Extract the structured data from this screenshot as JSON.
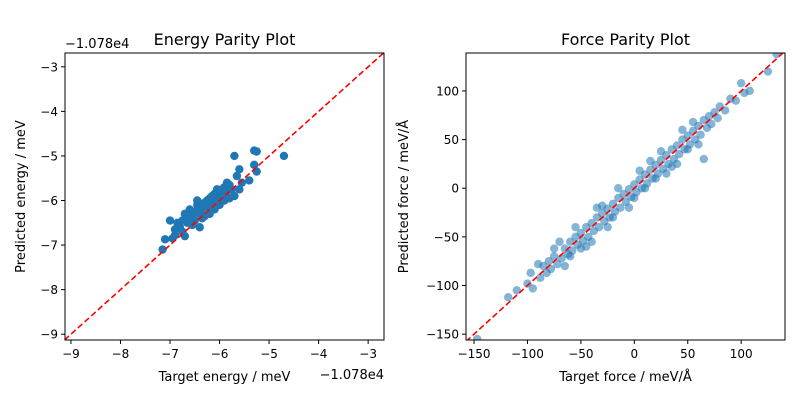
{
  "chart_data": [
    {
      "type": "scatter",
      "title": "Energy Parity Plot",
      "xlabel": "Target energy / meV",
      "ylabel": "Predicted energy / meV",
      "x_offset_label": "−1.078e4",
      "y_offset_label": "−1.078e4",
      "offset": -10780,
      "xlim": [
        -9.12,
        -2.68
      ],
      "ylim": [
        -9.13,
        -2.69
      ],
      "xticks": [
        -9,
        -8,
        -7,
        -6,
        -5,
        -4,
        -3
      ],
      "yticks": [
        -9,
        -8,
        -7,
        -6,
        -5,
        -4,
        -3
      ],
      "xtick_labels": [
        "−9",
        "−8",
        "−7",
        "−6",
        "−5",
        "−4",
        "−3"
      ],
      "ytick_labels": [
        "−9",
        "−8",
        "−7",
        "−6",
        "−5",
        "−4",
        "−3"
      ],
      "point_color": "#1f77b4",
      "point_alpha": 1.0,
      "reference_line": {
        "style": "dashed",
        "color": "#ff0000"
      },
      "grid": false,
      "points": [
        [
          -7.15,
          -7.1
        ],
        [
          -7.1,
          -6.87
        ],
        [
          -6.95,
          -6.85
        ],
        [
          -6.9,
          -6.78
        ],
        [
          -7.0,
          -6.45
        ],
        [
          -6.85,
          -6.5
        ],
        [
          -6.8,
          -6.6
        ],
        [
          -6.75,
          -6.45
        ],
        [
          -6.7,
          -6.8
        ],
        [
          -6.7,
          -6.3
        ],
        [
          -6.65,
          -6.5
        ],
        [
          -6.6,
          -6.4
        ],
        [
          -6.6,
          -6.2
        ],
        [
          -6.55,
          -6.35
        ],
        [
          -6.5,
          -6.25
        ],
        [
          -6.5,
          -6.45
        ],
        [
          -6.45,
          -6.1
        ],
        [
          -6.4,
          -6.6
        ],
        [
          -6.4,
          -6.3
        ],
        [
          -6.35,
          -6.2
        ],
        [
          -6.3,
          -6.05
        ],
        [
          -6.3,
          -6.35
        ],
        [
          -6.25,
          -6.15
        ],
        [
          -6.2,
          -5.95
        ],
        [
          -6.2,
          -6.3
        ],
        [
          -6.15,
          -6.1
        ],
        [
          -6.1,
          -5.85
        ],
        [
          -6.1,
          -6.2
        ],
        [
          -6.05,
          -6.0
        ],
        [
          -6.0,
          -5.8
        ],
        [
          -6.0,
          -6.1
        ],
        [
          -5.95,
          -5.9
        ],
        [
          -5.9,
          -5.7
        ],
        [
          -5.9,
          -6.0
        ],
        [
          -5.85,
          -5.8
        ],
        [
          -5.8,
          -5.65
        ],
        [
          -5.8,
          -5.95
        ],
        [
          -5.75,
          -5.75
        ],
        [
          -5.7,
          -5.9
        ],
        [
          -5.7,
          -5.0
        ],
        [
          -5.65,
          -5.45
        ],
        [
          -5.6,
          -5.75
        ],
        [
          -5.6,
          -5.3
        ],
        [
          -5.55,
          -5.6
        ],
        [
          -5.4,
          -5.55
        ],
        [
          -5.3,
          -5.2
        ],
        [
          -5.3,
          -4.88
        ],
        [
          -5.25,
          -4.9
        ],
        [
          -5.25,
          -5.35
        ],
        [
          -4.7,
          -5.0
        ],
        [
          -6.55,
          -6.55
        ],
        [
          -6.35,
          -6.4
        ],
        [
          -6.15,
          -5.9
        ],
        [
          -5.95,
          -5.75
        ],
        [
          -6.75,
          -6.7
        ],
        [
          -6.9,
          -6.65
        ],
        [
          -6.45,
          -6.0
        ],
        [
          -6.25,
          -6.0
        ],
        [
          -6.05,
          -5.75
        ],
        [
          -5.85,
          -5.6
        ]
      ]
    },
    {
      "type": "scatter",
      "title": "Force Parity Plot",
      "xlabel": "Target force / meV/Å",
      "ylabel": "Predicted force / meV/Å",
      "xlim": [
        -157.5,
        141
      ],
      "ylim": [
        -156,
        139
      ],
      "xticks": [
        -150,
        -100,
        -50,
        0,
        50,
        100
      ],
      "yticks": [
        -150,
        -100,
        -50,
        0,
        50,
        100
      ],
      "xtick_labels": [
        "−150",
        "−100",
        "−50",
        "0",
        "50",
        "100"
      ],
      "ytick_labels": [
        "−150",
        "−100",
        "−50",
        "0",
        "50",
        "100"
      ],
      "point_color": "#1f77b4",
      "point_alpha": 0.55,
      "reference_line": {
        "style": "dashed",
        "color": "#ff0000"
      },
      "grid": false,
      "points": [
        [
          -147,
          -155
        ],
        [
          -118,
          -112
        ],
        [
          -100,
          -98
        ],
        [
          -95,
          -103
        ],
        [
          -97,
          -87
        ],
        [
          -90,
          -78
        ],
        [
          -88,
          -92
        ],
        [
          -85,
          -80
        ],
        [
          -82,
          -87
        ],
        [
          -80,
          -75
        ],
        [
          -78,
          -83
        ],
        [
          -75,
          -70
        ],
        [
          -72,
          -78
        ],
        [
          -70,
          -55
        ],
        [
          -68,
          -72
        ],
        [
          -65,
          -62
        ],
        [
          -62,
          -68
        ],
        [
          -60,
          -55
        ],
        [
          -58,
          -64
        ],
        [
          -55,
          -50
        ],
        [
          -53,
          -58
        ],
        [
          -50,
          -46
        ],
        [
          -48,
          -54
        ],
        [
          -45,
          -40
        ],
        [
          -43,
          -50
        ],
        [
          -40,
          -36
        ],
        [
          -38,
          -44
        ],
        [
          -35,
          -30
        ],
        [
          -33,
          -40
        ],
        [
          -30,
          -26
        ],
        [
          -28,
          -34
        ],
        [
          -25,
          -21
        ],
        [
          -23,
          -30
        ],
        [
          -20,
          -16
        ],
        [
          -18,
          -24
        ],
        [
          -15,
          -10
        ],
        [
          -13,
          -20
        ],
        [
          -10,
          -6
        ],
        [
          -8,
          -14
        ],
        [
          -5,
          -1
        ],
        [
          -3,
          -9
        ],
        [
          0,
          4
        ],
        [
          2,
          -4
        ],
        [
          5,
          9
        ],
        [
          7,
          0
        ],
        [
          10,
          14
        ],
        [
          12,
          5
        ],
        [
          15,
          19
        ],
        [
          17,
          10
        ],
        [
          20,
          24
        ],
        [
          22,
          15
        ],
        [
          25,
          29
        ],
        [
          27,
          20
        ],
        [
          30,
          34
        ],
        [
          32,
          25
        ],
        [
          35,
          40
        ],
        [
          37,
          30
        ],
        [
          40,
          44
        ],
        [
          42,
          35
        ],
        [
          45,
          50
        ],
        [
          47,
          40
        ],
        [
          50,
          54
        ],
        [
          52,
          45
        ],
        [
          55,
          59
        ],
        [
          57,
          50
        ],
        [
          60,
          64
        ],
        [
          62,
          55
        ],
        [
          65,
          30
        ],
        [
          65,
          70
        ],
        [
          68,
          62
        ],
        [
          70,
          74
        ],
        [
          72,
          66
        ],
        [
          75,
          78
        ],
        [
          78,
          72
        ],
        [
          80,
          84
        ],
        [
          85,
          80
        ],
        [
          90,
          92
        ],
        [
          95,
          90
        ],
        [
          100,
          108
        ],
        [
          103,
          98
        ],
        [
          108,
          100
        ],
        [
          125,
          120
        ],
        [
          133,
          138
        ],
        [
          -110,
          -105
        ],
        [
          -60,
          -70
        ],
        [
          -40,
          -55
        ],
        [
          -20,
          -30
        ],
        [
          0,
          -10
        ],
        [
          20,
          10
        ],
        [
          40,
          25
        ],
        [
          -55,
          -40
        ],
        [
          -35,
          -20
        ],
        [
          -15,
          0
        ],
        [
          5,
          18
        ],
        [
          25,
          38
        ],
        [
          45,
          60
        ],
        [
          60,
          45
        ],
        [
          30,
          15
        ],
        [
          -5,
          -20
        ],
        [
          -25,
          -40
        ],
        [
          -45,
          -60
        ],
        [
          -65,
          -80
        ],
        [
          10,
          0
        ],
        [
          50,
          40
        ],
        [
          -30,
          -18
        ],
        [
          15,
          28
        ],
        [
          35,
          22
        ],
        [
          -50,
          -62
        ],
        [
          55,
          68
        ],
        [
          -75,
          -62
        ]
      ]
    }
  ]
}
